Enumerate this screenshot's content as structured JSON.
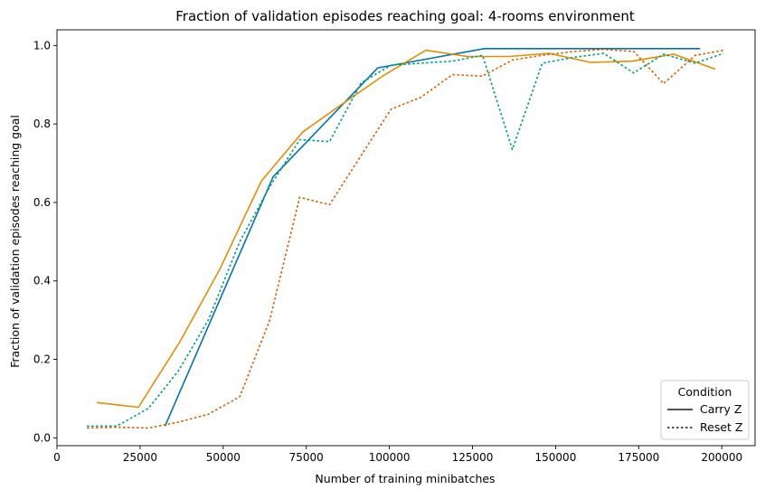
{
  "chart_data": {
    "type": "line",
    "title": "Fraction of validation episodes reaching goal: 4-rooms environment",
    "xlabel": "Number of training minibatches",
    "ylabel": "Fraction of validation episodes reaching goal",
    "xlim": [
      0,
      210000
    ],
    "ylim": [
      -0.02,
      1.04
    ],
    "xticks": [
      0,
      25000,
      50000,
      75000,
      100000,
      125000,
      150000,
      175000,
      200000
    ],
    "xtick_labels": [
      "0",
      "25000",
      "50000",
      "75000",
      "100000",
      "125000",
      "150000",
      "175000",
      "200000"
    ],
    "yticks": [
      0.0,
      0.2,
      0.4,
      0.6,
      0.8,
      1.0
    ],
    "ytick_labels": [
      "0.0",
      "0.2",
      "0.4",
      "0.6",
      "0.8",
      "1.0"
    ],
    "grid": false,
    "legend": {
      "title": "Condition",
      "placement": "bottom-right",
      "entries": [
        {
          "label": "Carry Z",
          "dash": "solid"
        },
        {
          "label": "Reset Z",
          "dash": "dotted"
        }
      ]
    },
    "series": [
      {
        "name": "Carry Z (blue)",
        "color": "#0173b2",
        "dash": "solid",
        "x": [
          32500,
          65000,
          96500,
          128500,
          161000,
          193500
        ],
        "y": [
          0.03,
          0.665,
          0.943,
          0.992,
          0.992,
          0.992
        ]
      },
      {
        "name": "Carry Z (orange)",
        "color": "#de8f05",
        "dash": "solid",
        "x": [
          12000,
          24500,
          37000,
          49000,
          61500,
          74000,
          86500,
          98500,
          111000,
          123500,
          136000,
          148000,
          160500,
          173000,
          185500,
          198000
        ],
        "y": [
          0.09,
          0.078,
          0.245,
          0.43,
          0.655,
          0.78,
          0.855,
          0.925,
          0.988,
          0.972,
          0.972,
          0.98,
          0.957,
          0.96,
          0.978,
          0.94
        ]
      },
      {
        "name": "Reset Z (green)",
        "color": "#029e73",
        "dash": "dotted",
        "x": [
          9000,
          18000,
          27500,
          36500,
          45500,
          55000,
          64000,
          73000,
          82000,
          91500,
          100500,
          109500,
          119000,
          128000,
          137000,
          146000,
          155500,
          164500,
          173500,
          182500,
          192000,
          200500
        ],
        "y": [
          0.03,
          0.03,
          0.075,
          0.17,
          0.3,
          0.5,
          0.64,
          0.76,
          0.755,
          0.905,
          0.95,
          0.955,
          0.96,
          0.975,
          0.735,
          0.955,
          0.97,
          0.98,
          0.93,
          0.978,
          0.955,
          0.98
        ]
      },
      {
        "name": "Reset Z (red)",
        "color": "#d55e00",
        "dash": "dotted",
        "x": [
          9000,
          18000,
          27500,
          36500,
          45500,
          55000,
          64000,
          73000,
          82000,
          91500,
          100500,
          109500,
          119000,
          128000,
          137000,
          146000,
          155500,
          164500,
          173500,
          182500,
          192000,
          200500
        ],
        "y": [
          0.025,
          0.027,
          0.025,
          0.04,
          0.06,
          0.105,
          0.3,
          0.613,
          0.594,
          0.72,
          0.838,
          0.868,
          0.926,
          0.922,
          0.963,
          0.975,
          0.985,
          0.99,
          0.985,
          0.903,
          0.975,
          0.988
        ]
      }
    ]
  }
}
